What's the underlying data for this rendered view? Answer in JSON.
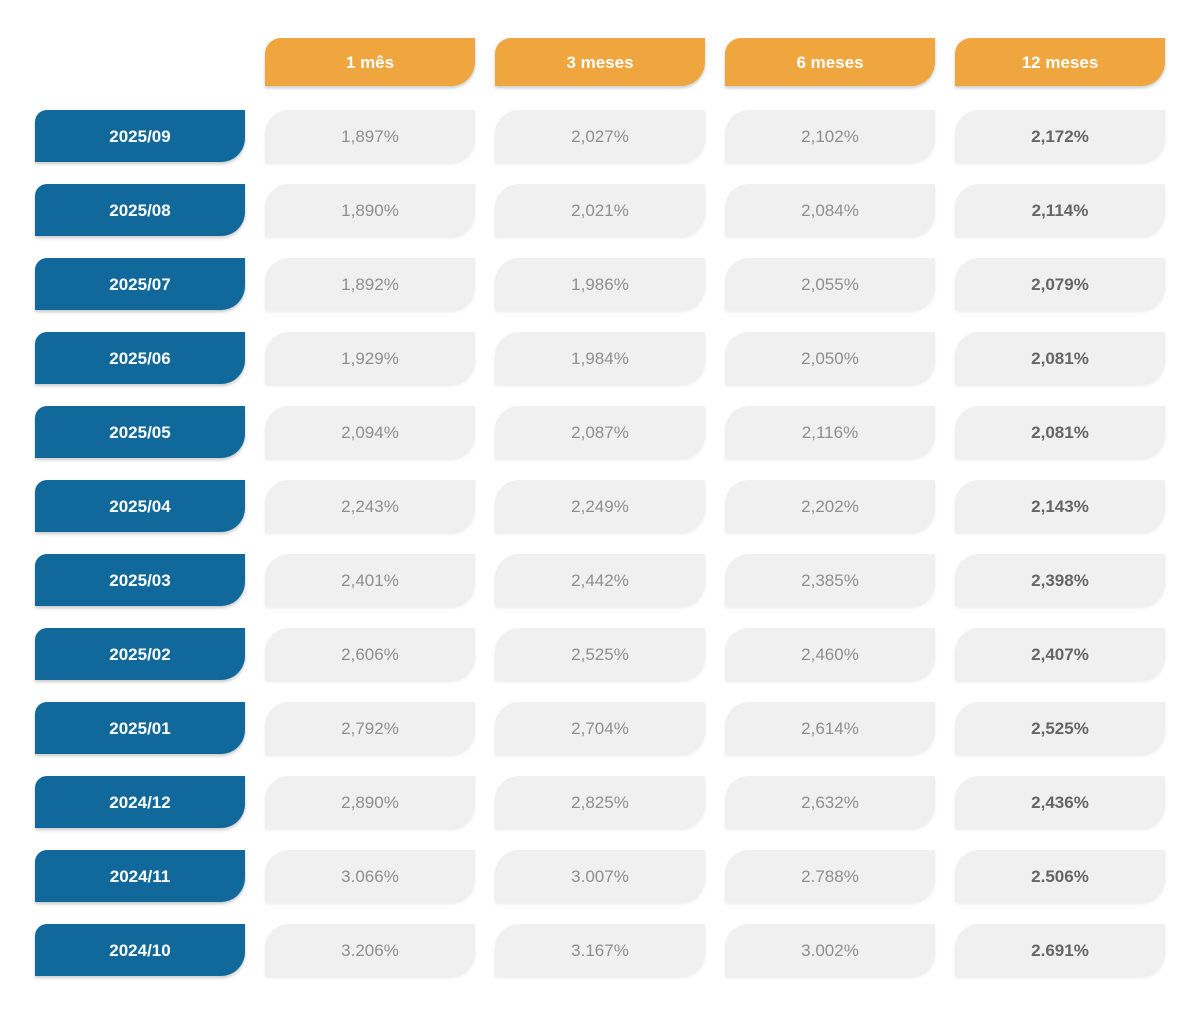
{
  "chart_data": {
    "type": "table",
    "column_headers": [
      "1 mês",
      "3 meses",
      "6 meses",
      "12 meses"
    ],
    "rows": [
      {
        "label": "2025/09",
        "values": [
          "1,897%",
          "2,027%",
          "2,102%",
          "2,172%"
        ]
      },
      {
        "label": "2025/08",
        "values": [
          "1,890%",
          "2,021%",
          "2,084%",
          "2,114%"
        ]
      },
      {
        "label": "2025/07",
        "values": [
          "1,892%",
          "1,986%",
          "2,055%",
          "2,079%"
        ]
      },
      {
        "label": "2025/06",
        "values": [
          "1,929%",
          "1,984%",
          "2,050%",
          "2,081%"
        ]
      },
      {
        "label": "2025/05",
        "values": [
          "2,094%",
          "2,087%",
          "2,116%",
          "2,081%"
        ]
      },
      {
        "label": "2025/04",
        "values": [
          "2,243%",
          "2,249%",
          "2,202%",
          "2,143%"
        ]
      },
      {
        "label": "2025/03",
        "values": [
          "2,401%",
          "2,442%",
          "2,385%",
          "2,398%"
        ]
      },
      {
        "label": "2025/02",
        "values": [
          "2,606%",
          "2,525%",
          "2,460%",
          "2,407%"
        ]
      },
      {
        "label": "2025/01",
        "values": [
          "2,792%",
          "2,704%",
          "2,614%",
          "2,525%"
        ]
      },
      {
        "label": "2024/12",
        "values": [
          "2,890%",
          "2,825%",
          "2,632%",
          "2,436%"
        ]
      },
      {
        "label": "2024/11",
        "values": [
          "3.066%",
          "3.007%",
          "2.788%",
          "2.506%"
        ]
      },
      {
        "label": "2024/10",
        "values": [
          "3.206%",
          "3.167%",
          "3.002%",
          "2.691%"
        ]
      }
    ]
  },
  "colors": {
    "header_bg": "#efa63f",
    "label_bg": "#10699a",
    "cell_bg": "#f0f0f0",
    "header_text": "#ffffff",
    "label_text": "#ffffff",
    "cell_text": "#8f8f8f",
    "cell_text_emphasis": "#666666",
    "page_bg": "#ffffff"
  }
}
